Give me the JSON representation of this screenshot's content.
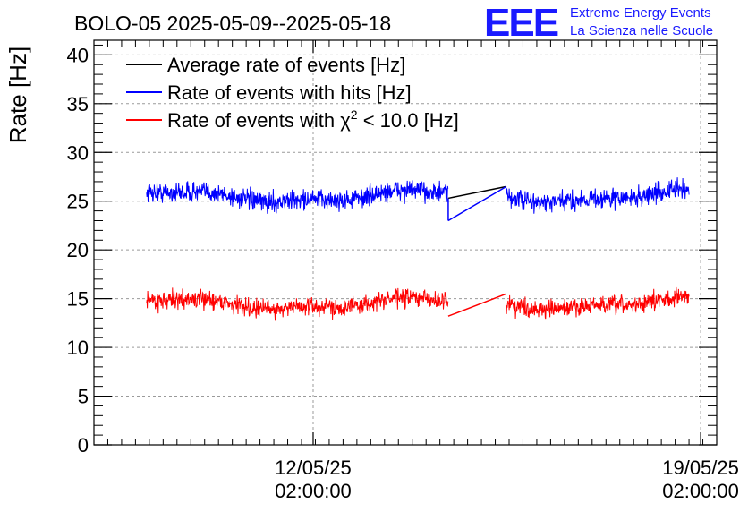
{
  "chart_data": {
    "type": "line",
    "title": "BOLO-05 2025-05-09--2025-05-18",
    "ylabel": "Rate [Hz]",
    "xlabel": "",
    "ylim": [
      0,
      41.5
    ],
    "yticks": [
      0,
      5,
      10,
      15,
      20,
      25,
      30,
      35,
      40
    ],
    "ytick_labels": [
      "0",
      "5",
      "10",
      "15",
      "20",
      "25",
      "30",
      "35",
      "40"
    ],
    "xlim_days": [
      0,
      11.25
    ],
    "xtick_positions_days": [
      3.96,
      10.96
    ],
    "xtick_labels": [
      {
        "date": "12/05/25",
        "time": "02:00:00"
      },
      {
        "date": "19/05/25",
        "time": "02:00:00"
      }
    ],
    "grid": true,
    "legend_position": "top-left",
    "gap_days": [
      6.4,
      7.45
    ],
    "data_range_days": [
      0.95,
      10.75
    ],
    "series": [
      {
        "name": "Average rate of events [Hz]",
        "color": "#000000",
        "approx_level_hz": 25.5,
        "gap_start_hz": 25.3,
        "gap_end_hz": 26.5
      },
      {
        "name": "Rate of events with hits [Hz]",
        "color": "#0000ff",
        "approx_level_hz": 25.5,
        "noise_hz": 1.0,
        "gap_start_hz": 23.0,
        "gap_end_hz": 26.5
      },
      {
        "name": "Rate of events with χ² < 10.0 [Hz]",
        "color": "#ff0000",
        "approx_level_hz": 14.5,
        "noise_hz": 0.9,
        "gap_start_hz": 13.2,
        "gap_end_hz": 15.5
      }
    ],
    "legend_labels": {
      "avg": "Average rate of events [Hz]",
      "hits": "Rate of events with hits [Hz]",
      "chi_prefix": "Rate of events with ",
      "chi_symbol": "χ",
      "chi_sup": "2",
      "chi_suffix": " < 10.0 [Hz]"
    }
  },
  "logo": {
    "letters": "EEE",
    "line1": "Extreme Energy Events",
    "line2": "La Scienza nelle Scuole",
    "color": "#1a1aff"
  }
}
